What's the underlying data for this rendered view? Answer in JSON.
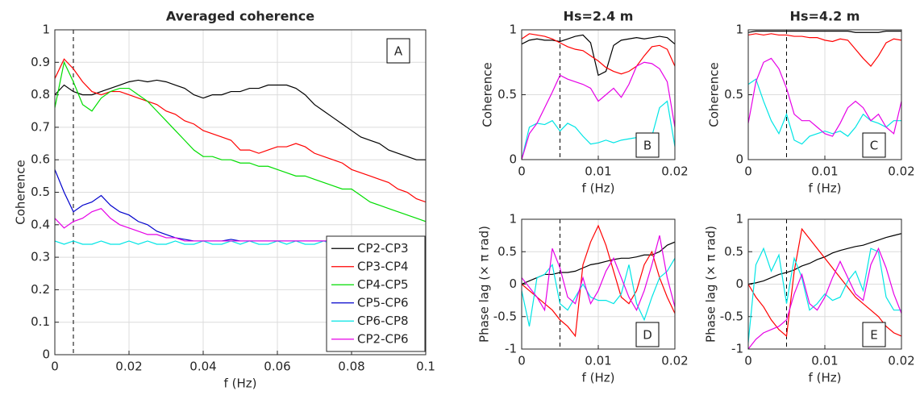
{
  "chart_data": [
    {
      "type": "line",
      "title": "Averaged coherence",
      "panel_label": "A",
      "xlabel": "f (Hz)",
      "ylabel": "Coherence",
      "xlim": [
        0,
        0.1
      ],
      "ylim": [
        0,
        1
      ],
      "xticks": [
        0,
        0.02,
        0.04,
        0.06,
        0.08,
        0.1
      ],
      "yticks": [
        0,
        0.1,
        0.2,
        0.3,
        0.4,
        0.5,
        0.6,
        0.7,
        0.8,
        0.9,
        1
      ],
      "grid": true,
      "vline": 0.005,
      "legend": "lower right",
      "x": [
        0,
        0.0025,
        0.005,
        0.0075,
        0.01,
        0.0125,
        0.015,
        0.0175,
        0.02,
        0.0225,
        0.025,
        0.0275,
        0.03,
        0.0325,
        0.035,
        0.0375,
        0.04,
        0.0425,
        0.045,
        0.0475,
        0.05,
        0.0525,
        0.055,
        0.0575,
        0.06,
        0.0625,
        0.065,
        0.0675,
        0.07,
        0.0725,
        0.075,
        0.0775,
        0.08,
        0.0825,
        0.085,
        0.0875,
        0.09,
        0.0925,
        0.095,
        0.0975,
        0.1
      ],
      "series": [
        {
          "name": "CP2-CP3",
          "color": "#000000",
          "values": [
            0.8,
            0.83,
            0.81,
            0.8,
            0.8,
            0.81,
            0.82,
            0.83,
            0.84,
            0.845,
            0.84,
            0.845,
            0.84,
            0.83,
            0.82,
            0.8,
            0.79,
            0.8,
            0.8,
            0.81,
            0.81,
            0.82,
            0.82,
            0.83,
            0.83,
            0.83,
            0.82,
            0.8,
            0.77,
            0.75,
            0.73,
            0.71,
            0.69,
            0.67,
            0.66,
            0.65,
            0.63,
            0.62,
            0.61,
            0.6,
            0.6
          ]
        },
        {
          "name": "CP3-CP4",
          "color": "#ff0000",
          "values": [
            0.85,
            0.91,
            0.88,
            0.84,
            0.81,
            0.8,
            0.81,
            0.81,
            0.8,
            0.79,
            0.78,
            0.77,
            0.75,
            0.74,
            0.72,
            0.71,
            0.69,
            0.68,
            0.67,
            0.66,
            0.63,
            0.63,
            0.62,
            0.63,
            0.64,
            0.64,
            0.65,
            0.64,
            0.62,
            0.61,
            0.6,
            0.59,
            0.57,
            0.56,
            0.55,
            0.54,
            0.53,
            0.51,
            0.5,
            0.48,
            0.47
          ]
        },
        {
          "name": "CP4-CP5",
          "color": "#00dd00",
          "values": [
            0.76,
            0.9,
            0.84,
            0.77,
            0.75,
            0.79,
            0.81,
            0.82,
            0.82,
            0.8,
            0.78,
            0.75,
            0.72,
            0.69,
            0.66,
            0.63,
            0.61,
            0.61,
            0.6,
            0.6,
            0.59,
            0.59,
            0.58,
            0.58,
            0.57,
            0.56,
            0.55,
            0.55,
            0.54,
            0.53,
            0.52,
            0.51,
            0.51,
            0.49,
            0.47,
            0.46,
            0.45,
            0.44,
            0.43,
            0.42,
            0.41
          ]
        },
        {
          "name": "CP5-CP6",
          "color": "#0000cc",
          "values": [
            0.57,
            0.5,
            0.44,
            0.46,
            0.47,
            0.49,
            0.46,
            0.44,
            0.43,
            0.41,
            0.4,
            0.38,
            0.37,
            0.36,
            0.355,
            0.35,
            0.35,
            0.35,
            0.35,
            0.355,
            0.35,
            0.35,
            0.35,
            0.35,
            0.35,
            0.35,
            0.35,
            0.35,
            0.35,
            0.35,
            0.35,
            0.35,
            0.35,
            0.35,
            0.35,
            0.35,
            0.35,
            0.35,
            0.35,
            0.35,
            0.35
          ]
        },
        {
          "name": "CP6-CP8",
          "color": "#00e5e5",
          "values": [
            0.35,
            0.34,
            0.35,
            0.34,
            0.34,
            0.35,
            0.34,
            0.34,
            0.35,
            0.34,
            0.35,
            0.34,
            0.34,
            0.35,
            0.34,
            0.34,
            0.35,
            0.34,
            0.34,
            0.35,
            0.34,
            0.35,
            0.34,
            0.34,
            0.35,
            0.34,
            0.35,
            0.34,
            0.34,
            0.35,
            0.34,
            0.34,
            0.35,
            0.34,
            0.34,
            0.35,
            0.34,
            0.34,
            0.35,
            0.34,
            0.34
          ]
        },
        {
          "name": "CP2-CP6",
          "color": "#e600e6",
          "values": [
            0.42,
            0.39,
            0.41,
            0.42,
            0.44,
            0.45,
            0.42,
            0.4,
            0.39,
            0.38,
            0.37,
            0.37,
            0.36,
            0.36,
            0.35,
            0.35,
            0.35,
            0.35,
            0.35,
            0.35,
            0.35,
            0.35,
            0.35,
            0.35,
            0.35,
            0.35,
            0.35,
            0.35,
            0.35,
            0.35,
            0.35,
            0.35,
            0.35,
            0.35,
            0.35,
            0.35,
            0.35,
            0.35,
            0.35,
            0.35,
            0.35
          ]
        }
      ]
    },
    {
      "type": "line",
      "title": "Hs=2.4 m",
      "panel_label": "B",
      "xlabel": "f (Hz)",
      "ylabel": "Coherence",
      "xlim": [
        0,
        0.02
      ],
      "ylim": [
        0,
        1
      ],
      "xticks": [
        0,
        0.01,
        0.02
      ],
      "yticks": [
        0,
        0.5,
        1
      ],
      "grid": true,
      "vline": 0.005,
      "x": [
        0,
        0.001,
        0.002,
        0.003,
        0.004,
        0.005,
        0.006,
        0.007,
        0.008,
        0.009,
        0.01,
        0.011,
        0.012,
        0.013,
        0.014,
        0.015,
        0.016,
        0.017,
        0.018,
        0.019,
        0.02
      ],
      "series": [
        {
          "color": "#000000",
          "values": [
            0.89,
            0.92,
            0.93,
            0.92,
            0.92,
            0.91,
            0.93,
            0.95,
            0.96,
            0.9,
            0.65,
            0.68,
            0.88,
            0.92,
            0.93,
            0.94,
            0.93,
            0.94,
            0.95,
            0.94,
            0.89
          ]
        },
        {
          "color": "#ff0000",
          "values": [
            0.93,
            0.97,
            0.96,
            0.95,
            0.93,
            0.9,
            0.87,
            0.85,
            0.84,
            0.8,
            0.76,
            0.71,
            0.68,
            0.66,
            0.68,
            0.72,
            0.8,
            0.87,
            0.88,
            0.85,
            0.72
          ]
        },
        {
          "color": "#00e5e5",
          "values": [
            0,
            0.25,
            0.28,
            0.27,
            0.3,
            0.22,
            0.28,
            0.25,
            0.18,
            0.12,
            0.13,
            0.15,
            0.13,
            0.15,
            0.16,
            0.17,
            0.15,
            0.18,
            0.4,
            0.45,
            0.1
          ]
        },
        {
          "color": "#e600e6",
          "values": [
            0,
            0.2,
            0.28,
            0.4,
            0.52,
            0.65,
            0.62,
            0.6,
            0.58,
            0.55,
            0.45,
            0.5,
            0.55,
            0.48,
            0.58,
            0.72,
            0.75,
            0.74,
            0.7,
            0.6,
            0.25
          ]
        }
      ]
    },
    {
      "type": "line",
      "title": "Hs=4.2 m",
      "panel_label": "C",
      "xlabel": "f (Hz)",
      "ylabel": "Coherence",
      "xlim": [
        0,
        0.02
      ],
      "ylim": [
        0,
        1
      ],
      "xticks": [
        0,
        0.01,
        0.02
      ],
      "yticks": [
        0,
        0.5,
        1
      ],
      "grid": true,
      "vline": 0.005,
      "x": [
        0,
        0.001,
        0.002,
        0.003,
        0.004,
        0.005,
        0.006,
        0.007,
        0.008,
        0.009,
        0.01,
        0.011,
        0.012,
        0.013,
        0.014,
        0.015,
        0.016,
        0.017,
        0.018,
        0.019,
        0.02
      ],
      "series": [
        {
          "color": "#000000",
          "values": [
            0.98,
            0.99,
            0.99,
            0.99,
            0.99,
            0.99,
            0.99,
            0.99,
            0.99,
            0.99,
            0.99,
            0.99,
            0.99,
            0.99,
            0.98,
            0.98,
            0.98,
            0.98,
            0.99,
            0.99,
            0.99
          ]
        },
        {
          "color": "#ff0000",
          "values": [
            0.96,
            0.97,
            0.96,
            0.97,
            0.96,
            0.96,
            0.95,
            0.95,
            0.94,
            0.94,
            0.92,
            0.91,
            0.93,
            0.92,
            0.85,
            0.78,
            0.72,
            0.8,
            0.9,
            0.93,
            0.92
          ]
        },
        {
          "color": "#00e5e5",
          "values": [
            0.58,
            0.62,
            0.45,
            0.3,
            0.2,
            0.35,
            0.15,
            0.12,
            0.18,
            0.2,
            0.22,
            0.2,
            0.22,
            0.18,
            0.25,
            0.35,
            0.3,
            0.28,
            0.25,
            0.3,
            0.3
          ]
        },
        {
          "color": "#e600e6",
          "values": [
            0.28,
            0.6,
            0.75,
            0.78,
            0.7,
            0.55,
            0.35,
            0.3,
            0.3,
            0.25,
            0.2,
            0.18,
            0.28,
            0.4,
            0.45,
            0.4,
            0.3,
            0.35,
            0.25,
            0.2,
            0.45
          ]
        }
      ]
    },
    {
      "type": "line",
      "panel_label": "D",
      "xlabel": "f (Hz)",
      "ylabel": "Phase lag (× π rad)",
      "xlim": [
        0,
        0.02
      ],
      "ylim": [
        -1,
        1
      ],
      "xticks": [
        0,
        0.01,
        0.02
      ],
      "yticks": [
        -1,
        -0.5,
        0,
        0.5,
        1
      ],
      "grid": true,
      "vline": 0.005,
      "x": [
        0,
        0.001,
        0.002,
        0.003,
        0.004,
        0.005,
        0.006,
        0.007,
        0.008,
        0.009,
        0.01,
        0.011,
        0.012,
        0.013,
        0.014,
        0.015,
        0.016,
        0.017,
        0.018,
        0.019,
        0.02
      ],
      "series": [
        {
          "color": "#000000",
          "values": [
            0,
            0.05,
            0.1,
            0.15,
            0.15,
            0.18,
            0.18,
            0.2,
            0.25,
            0.3,
            0.32,
            0.35,
            0.38,
            0.4,
            0.4,
            0.42,
            0.45,
            0.45,
            0.5,
            0.6,
            0.65
          ]
        },
        {
          "color": "#ff0000",
          "values": [
            0,
            -0.1,
            -0.2,
            -0.3,
            -0.4,
            -0.55,
            -0.65,
            -0.8,
            0.3,
            0.65,
            0.9,
            0.6,
            0.2,
            -0.2,
            -0.3,
            -0.1,
            0.3,
            0.5,
            0.1,
            -0.2,
            -0.45
          ]
        },
        {
          "color": "#00e5e5",
          "values": [
            -0.1,
            -0.65,
            0.1,
            0.15,
            0.3,
            -0.3,
            -0.4,
            -0.2,
            0,
            -0.2,
            -0.25,
            -0.25,
            -0.3,
            -0.15,
            0.3,
            -0.3,
            -0.55,
            -0.2,
            0.1,
            0.2,
            0.4
          ]
        },
        {
          "color": "#e600e6",
          "values": [
            0.1,
            -0.05,
            -0.2,
            -0.4,
            0.55,
            0.25,
            -0.2,
            -0.3,
            0.1,
            -0.3,
            -0.1,
            0.2,
            0.4,
            0.1,
            -0.2,
            -0.4,
            -0.1,
            0.3,
            0.75,
            0.1,
            -0.35
          ]
        }
      ]
    },
    {
      "type": "line",
      "panel_label": "E",
      "xlabel": "f (Hz)",
      "ylabel": "Phase lag (× π rad)",
      "xlim": [
        0,
        0.02
      ],
      "ylim": [
        -1,
        1
      ],
      "xticks": [
        0,
        0.01,
        0.02
      ],
      "yticks": [
        -1,
        -0.5,
        0,
        0.5,
        1
      ],
      "grid": true,
      "vline": 0.005,
      "x": [
        0,
        0.001,
        0.002,
        0.003,
        0.004,
        0.005,
        0.006,
        0.007,
        0.008,
        0.009,
        0.01,
        0.011,
        0.012,
        0.013,
        0.014,
        0.015,
        0.016,
        0.017,
        0.018,
        0.019,
        0.02
      ],
      "series": [
        {
          "color": "#000000",
          "values": [
            0,
            0.02,
            0.05,
            0.1,
            0.15,
            0.18,
            0.22,
            0.28,
            0.32,
            0.38,
            0.42,
            0.48,
            0.52,
            0.55,
            0.58,
            0.6,
            0.64,
            0.68,
            0.72,
            0.75,
            0.78
          ]
        },
        {
          "color": "#ff0000",
          "values": [
            0,
            -0.2,
            -0.35,
            -0.55,
            -0.7,
            -0.8,
            0.2,
            0.85,
            0.7,
            0.55,
            0.4,
            0.25,
            0.1,
            -0.05,
            -0.2,
            -0.3,
            -0.4,
            -0.5,
            -0.65,
            -0.75,
            -0.8
          ]
        },
        {
          "color": "#00e5e5",
          "values": [
            -0.9,
            0.3,
            0.55,
            0.2,
            0.45,
            -0.3,
            0.4,
            0.1,
            -0.4,
            -0.3,
            -0.15,
            -0.25,
            -0.2,
            0.05,
            0.2,
            -0.1,
            0.55,
            0.5,
            -0.2,
            -0.4,
            -0.4
          ]
        },
        {
          "color": "#e600e6",
          "values": [
            -1,
            -0.85,
            -0.75,
            -0.7,
            -0.65,
            -0.55,
            -0.15,
            0.15,
            -0.3,
            -0.4,
            -0.2,
            0.1,
            0.35,
            0.1,
            -0.15,
            -0.25,
            0.3,
            0.55,
            0.25,
            -0.15,
            -0.45
          ]
        }
      ]
    }
  ]
}
